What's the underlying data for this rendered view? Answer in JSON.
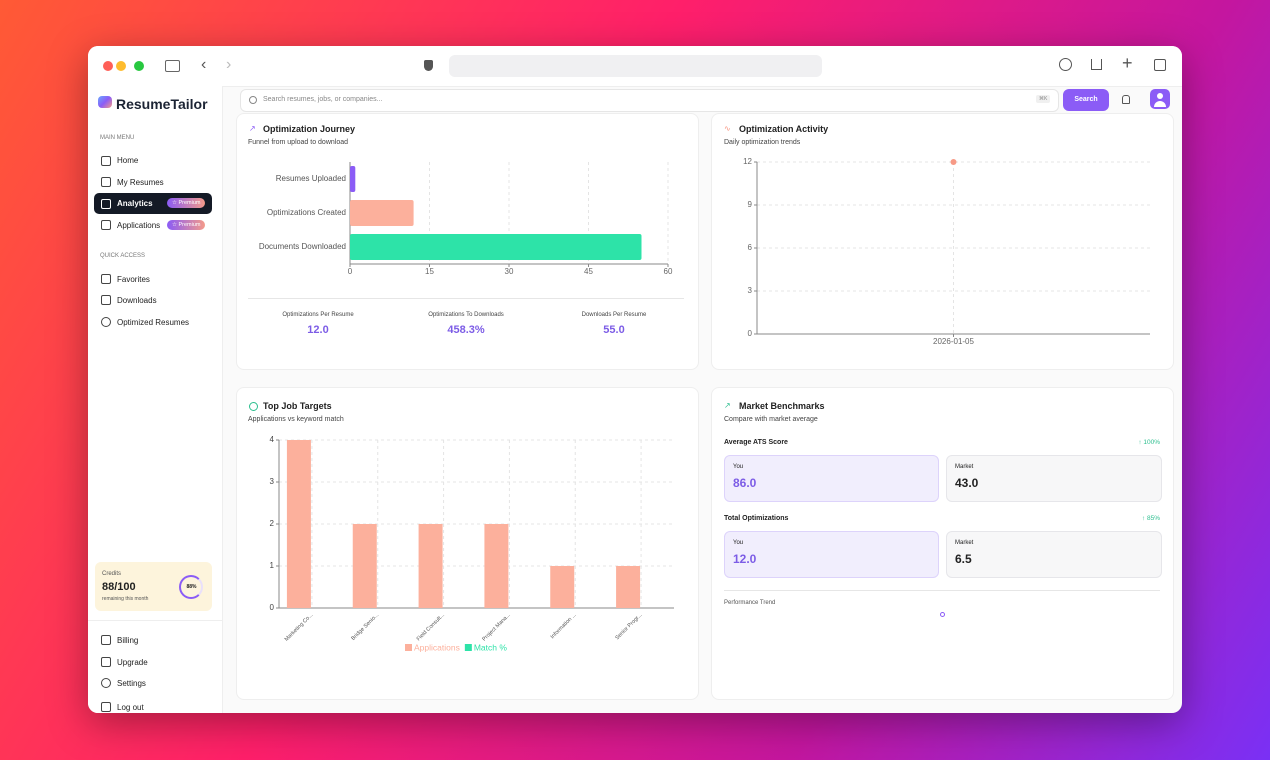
{
  "brand": "ResumeTailor",
  "search": {
    "placeholder": "Search resumes, jobs, or companies...",
    "shortcut": "⌘K",
    "button": "Search"
  },
  "sidebar": {
    "main_label": "MAIN MENU",
    "main": [
      {
        "label": "Home"
      },
      {
        "label": "My Resumes"
      },
      {
        "label": "Analytics",
        "badge": "☆ Premium"
      },
      {
        "label": "Applications",
        "badge": "☆ Premium"
      }
    ],
    "quick_label": "QUICK ACCESS",
    "quick": [
      "Favorites",
      "Downloads",
      "Optimized Resumes"
    ],
    "credits": {
      "label": "Credits",
      "value": "88/100",
      "note": "remaining this month",
      "percent": "88%"
    },
    "footer": [
      "Billing",
      "Upgrade",
      "Settings",
      "Log out"
    ]
  },
  "chart_data": [
    {
      "type": "hbar",
      "title": "Optimization Journey",
      "subtitle": "Funnel from upload to download",
      "categories": [
        "Resumes Uploaded",
        "Optimizations Created",
        "Documents Downloaded"
      ],
      "values": [
        1,
        12,
        55
      ],
      "colors": [
        "#8b5cf6",
        "#fcb09c",
        "#2de3a8"
      ],
      "xlim": [
        0,
        60
      ],
      "xticks": [
        0,
        15,
        30,
        45,
        60
      ],
      "grid": true,
      "stats": [
        {
          "label": "Optimizations Per Resume",
          "value": "12.0"
        },
        {
          "label": "Optimizations To Downloads",
          "value": "458.3%"
        },
        {
          "label": "Downloads Per Resume",
          "value": "55.0"
        }
      ]
    },
    {
      "type": "line",
      "title": "Optimization Activity",
      "subtitle": "Daily optimization trends",
      "categories": [
        "2026-01-05"
      ],
      "values": [
        12
      ],
      "color": "#f79a86",
      "ylim": [
        0,
        12
      ],
      "yticks": [
        0,
        3,
        6,
        9,
        12
      ],
      "grid": true
    },
    {
      "type": "bar",
      "title": "Top Job Targets",
      "subtitle": "Applications vs keyword match",
      "categories": [
        "Marketing Co...",
        "Bridge Senio...",
        "Field Consult...",
        "Project Mana...",
        "Information ...",
        "Senior Progr..."
      ],
      "series": [
        {
          "name": "Applications",
          "color": "#fcb09c",
          "values": [
            4,
            2,
            2,
            2,
            1,
            1
          ]
        },
        {
          "name": "Match %",
          "color": "#2de3a8",
          "values": [
            0,
            0,
            0,
            0,
            0,
            0
          ]
        }
      ],
      "ylim": [
        0,
        4
      ],
      "yticks": [
        0,
        1,
        2,
        3,
        4
      ],
      "grid": true
    }
  ],
  "benchmarks": {
    "title": "Market Benchmarks",
    "subtitle": "Compare with market average",
    "metrics": [
      {
        "label": "Average ATS Score",
        "change": "↑ 100%",
        "you_label": "You",
        "you": "86.0",
        "market_label": "Market",
        "market": "43.0"
      },
      {
        "label": "Total Optimizations",
        "change": "↑ 85%",
        "you_label": "You",
        "you": "12.0",
        "market_label": "Market",
        "market": "6.5"
      }
    ],
    "trend_label": "Performance Trend"
  }
}
